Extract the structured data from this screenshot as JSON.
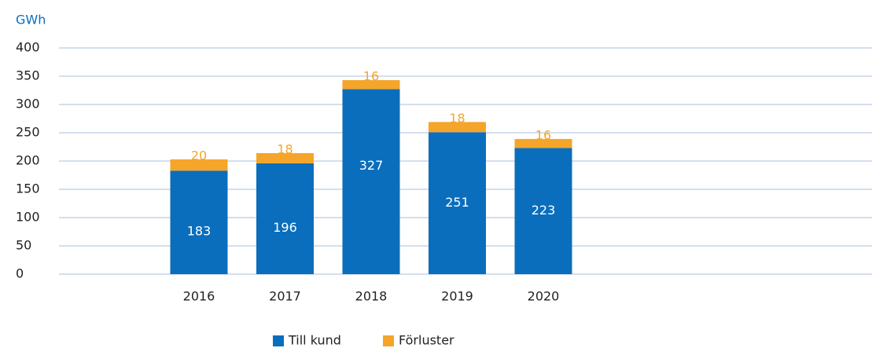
{
  "chart_data": {
    "type": "stacked_bar",
    "y_axis_label": "GWh",
    "categories": [
      "2016",
      "2017",
      "2018",
      "2019",
      "2020"
    ],
    "series": [
      {
        "name": "Till kund",
        "color": "#0a6ebd",
        "values": [
          183,
          196,
          327,
          251,
          223
        ]
      },
      {
        "name": "Förluster",
        "color": "#f5a52a",
        "values": [
          20,
          18,
          16,
          18,
          16
        ]
      }
    ],
    "ylim": [
      0,
      400
    ],
    "yticks": [
      0,
      50,
      100,
      150,
      200,
      250,
      300,
      350,
      400
    ],
    "grid": true
  }
}
